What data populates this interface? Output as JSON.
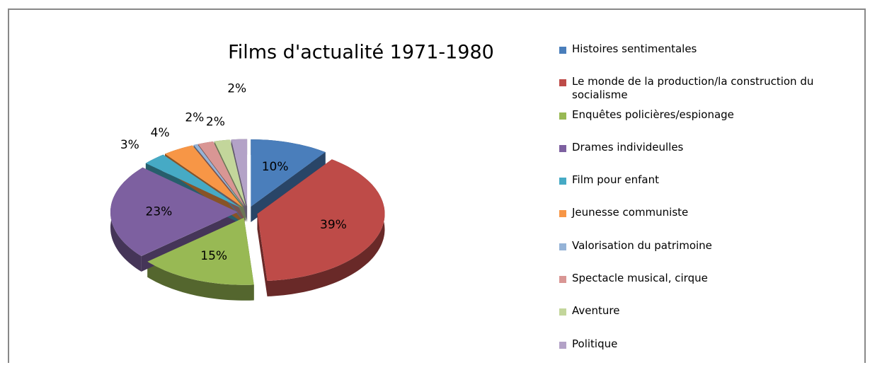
{
  "chart_data": {
    "type": "pie3d",
    "title": "Films d'actualité 1971-1980",
    "categories": [
      "Histoires sentimentales",
      "Le monde de la production/la construction du socialisme",
      "Enquêtes policières/espionage",
      "Drames individeulles",
      "Film pour enfant",
      "Jeunesse communiste",
      "Valorisation du patrimoine",
      "Spectacle musical, cirque",
      "Aventure",
      "Politique"
    ],
    "values": [
      10,
      39,
      15,
      23,
      3,
      4,
      0.5,
      2,
      2,
      2
    ],
    "value_labels": [
      "10%",
      "39%",
      "15%",
      "23%",
      "3%",
      "4%",
      null,
      "2%",
      "2%",
      "2%"
    ],
    "colors": [
      "#4a7ebb",
      "#be4b48",
      "#98b954",
      "#7d60a0",
      "#46aac5",
      "#f79646",
      "#95b3d7",
      "#d99694",
      "#c3d69b",
      "#b3a2c7"
    ],
    "legend": "right"
  }
}
